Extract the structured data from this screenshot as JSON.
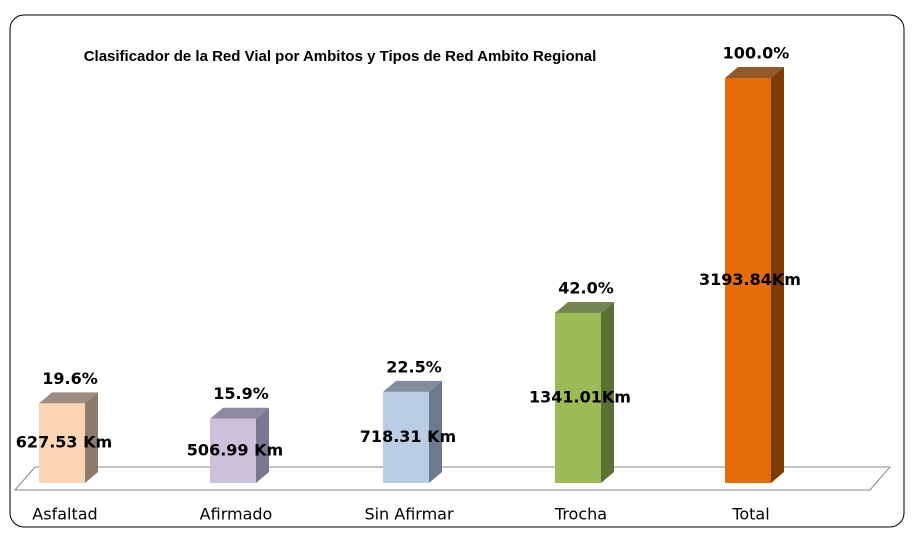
{
  "chart_data": {
    "type": "bar3d",
    "title": "Clasificador de la Red Vial por Ambitos y Tipos de Red Ambito Regional",
    "categories": [
      "Asfaltad",
      "Afirmado",
      "Sin Afirmar",
      "Trocha",
      "Total"
    ],
    "values": [
      627.53,
      506.99,
      718.31,
      1341.01,
      3193.84
    ],
    "value_labels": [
      "627.53 Km",
      "506.99 Km",
      "718.31 Km",
      "1341.01Km",
      "3193.84Km"
    ],
    "percentages": [
      19.6,
      15.9,
      22.5,
      42.0,
      100.0
    ],
    "percentage_labels": [
      "19.6%",
      "15.9%",
      "22.5%",
      "42.0%",
      "100.0%"
    ],
    "colors": [
      "#fcd5b5",
      "#ccc1da",
      "#b9cde5",
      "#9bbb59",
      "#e46c0a"
    ],
    "side_colors": [
      "#8c7a6b",
      "#7d7690",
      "#6b7a8c",
      "#5d7034",
      "#7f3b05"
    ]
  }
}
